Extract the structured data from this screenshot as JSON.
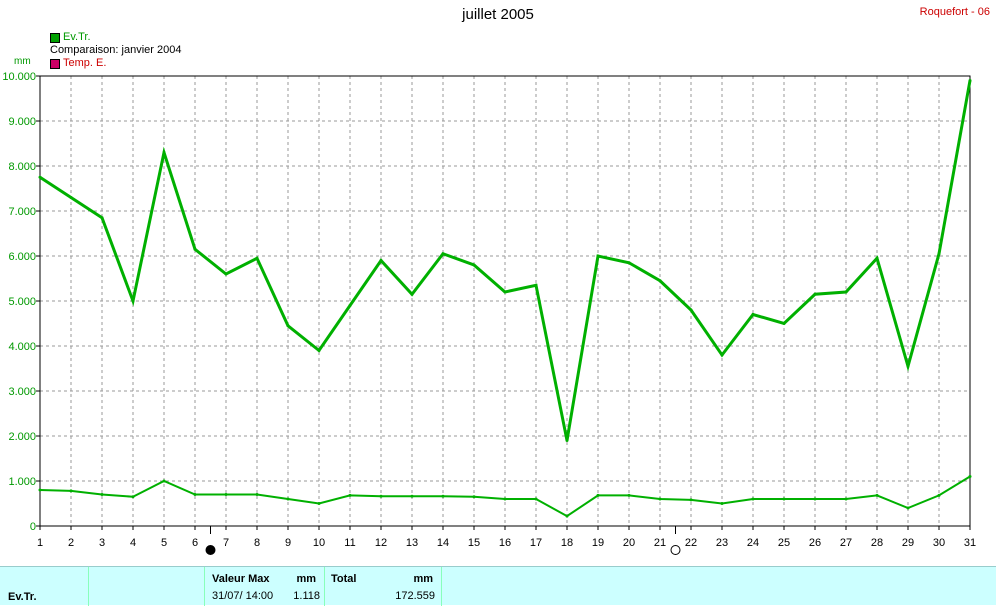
{
  "header": {
    "title": "juillet 2005",
    "station": "Roquefort - 06"
  },
  "legend": {
    "items": [
      {
        "label": "Ev.Tr.",
        "color": "#00a000",
        "text_color": "#009900"
      },
      {
        "label": "Comparaison: janvier 2004",
        "color": null,
        "text_color": "#000000"
      },
      {
        "label": "Temp. E.",
        "color": "#cc0066",
        "text_color": "#cc0000"
      }
    ]
  },
  "axis": {
    "y_unit": "mm"
  },
  "chart_data": {
    "type": "line",
    "title": "juillet 2005",
    "xlabel": "",
    "ylabel": "mm",
    "x": [
      1,
      2,
      3,
      4,
      5,
      6,
      7,
      8,
      9,
      10,
      11,
      12,
      13,
      14,
      15,
      16,
      17,
      18,
      19,
      20,
      21,
      22,
      23,
      24,
      25,
      26,
      27,
      28,
      29,
      30,
      31
    ],
    "xlim": [
      1,
      31
    ],
    "ylim": [
      0,
      10
    ],
    "y_ticks": [
      "0",
      "1.000",
      "2.000",
      "3.000",
      "4.000",
      "5.000",
      "6.000",
      "7.000",
      "8.000",
      "9.000",
      "10.000"
    ],
    "grid": true,
    "series": [
      {
        "name": "Ev.Tr.",
        "color": "#00b000",
        "line_width": "thick",
        "values": [
          7.75,
          7.3,
          6.85,
          5.0,
          8.3,
          6.15,
          5.6,
          5.95,
          4.45,
          3.9,
          4.9,
          5.9,
          5.15,
          6.05,
          5.8,
          5.2,
          5.35,
          1.9,
          6.0,
          5.85,
          5.45,
          4.8,
          3.8,
          4.7,
          4.5,
          5.15,
          5.2,
          5.95,
          3.55,
          6.05,
          9.9
        ]
      },
      {
        "name": "Comparaison: janvier 2004",
        "color": "#00b000",
        "line_width": "thin",
        "values": [
          0.8,
          0.78,
          0.7,
          0.65,
          1.0,
          0.7,
          0.7,
          0.7,
          0.6,
          0.5,
          0.68,
          0.66,
          0.66,
          0.66,
          0.65,
          0.6,
          0.6,
          0.22,
          0.68,
          0.68,
          0.6,
          0.58,
          0.5,
          0.6,
          0.6,
          0.6,
          0.6,
          0.68,
          0.4,
          0.68,
          1.1
        ]
      }
    ],
    "markers": [
      {
        "x": 6.5,
        "style": "filled"
      },
      {
        "x": 21.5,
        "style": "hollow"
      }
    ]
  },
  "stats_panel": {
    "series_label": "Ev.Tr.",
    "max_label": "Valeur Max",
    "max_unit": "mm",
    "max_datetime": "31/07/ 14:00",
    "max_value": "1.118",
    "total_label": "Total",
    "total_unit": "mm",
    "total_value": "172.559"
  }
}
